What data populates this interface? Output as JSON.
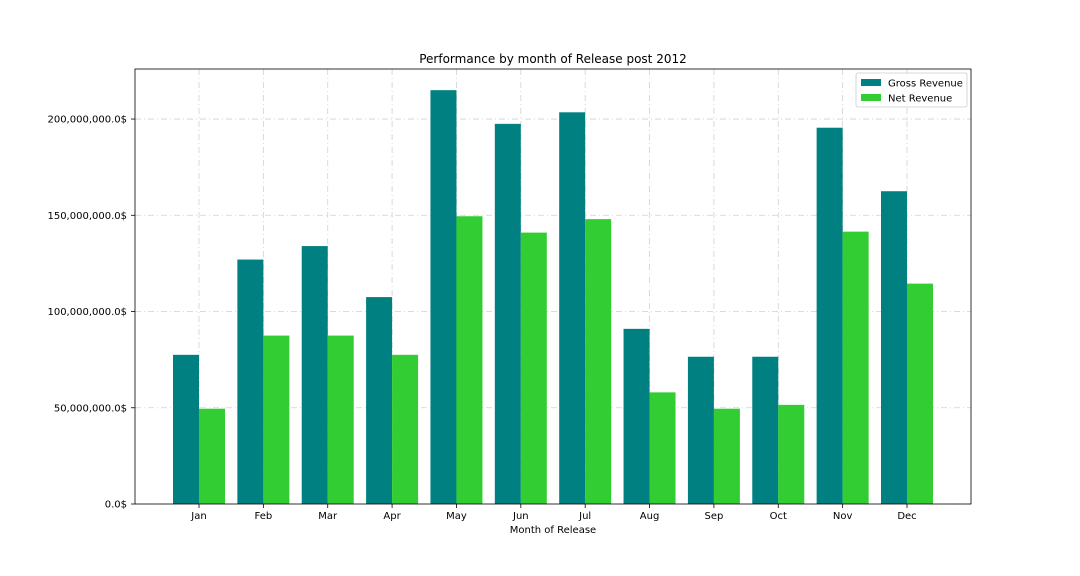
{
  "chart_data": {
    "type": "bar",
    "title": "Performance by month of Release post 2012",
    "xlabel": "Month of Release",
    "ylabel": "",
    "categories": [
      "Jan",
      "Feb",
      "Mar",
      "Apr",
      "May",
      "Jun",
      "Jul",
      "Aug",
      "Sep",
      "Oct",
      "Nov",
      "Dec"
    ],
    "series": [
      {
        "name": "Gross Revenue",
        "color": "#008080",
        "values": [
          77500000,
          127000000,
          134000000,
          107500000,
          215000000,
          197500000,
          203500000,
          91000000,
          76500000,
          76500000,
          195500000,
          162500000
        ]
      },
      {
        "name": "Net Revenue",
        "color": "#32cd32",
        "values": [
          49500000,
          87500000,
          87500000,
          77500000,
          149500000,
          141000000,
          148000000,
          58000000,
          49500000,
          51500000,
          141500000,
          114500000
        ]
      }
    ],
    "ylim": [
      0,
      226000000
    ],
    "yticks": [
      {
        "value": 0,
        "label": "0.0$"
      },
      {
        "value": 50000000,
        "label": "50,000,000.0$"
      },
      {
        "value": 100000000,
        "label": "100,000,000.0$"
      },
      {
        "value": 150000000,
        "label": "150,000,000.0$"
      },
      {
        "value": 200000000,
        "label": "200,000,000.0$"
      }
    ],
    "grid": true,
    "legend_position": "top-right"
  }
}
